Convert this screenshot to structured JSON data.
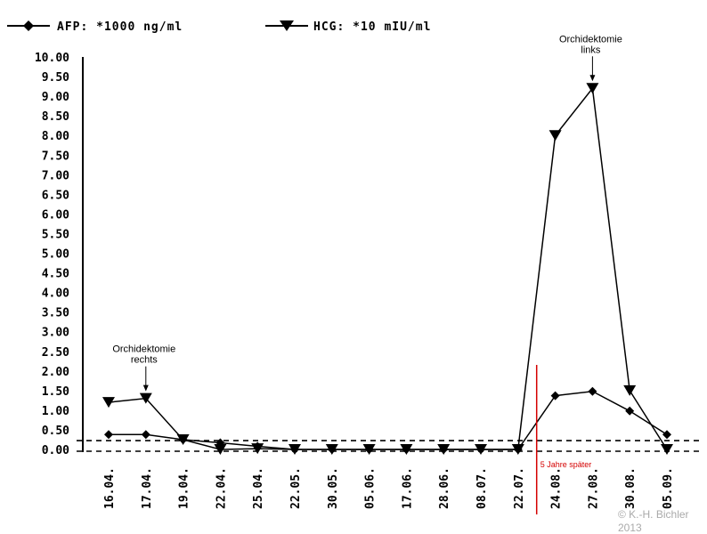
{
  "chart_data": {
    "type": "line",
    "categories": [
      "16.04.",
      "17.04.",
      "19.04.",
      "22.04.",
      "25.04.",
      "22.05.",
      "30.05.",
      "05.06.",
      "17.06.",
      "28.06.",
      "08.07.",
      "22.07.",
      "24.08.",
      "27.08.",
      "30.08.",
      "05.09."
    ],
    "series": [
      {
        "name": "AFP: *1000 ng/ml",
        "marker": "diamond",
        "color": "#000000",
        "values": [
          0.38,
          0.38,
          0.25,
          0.17,
          0.08,
          0.0,
          0.0,
          0.0,
          0.0,
          0.0,
          0.0,
          0.0,
          1.37,
          1.48,
          0.98,
          0.38
        ]
      },
      {
        "name": "HCG: *10 mIU/ml",
        "marker": "triangle-down",
        "color": "#000000",
        "values": [
          1.2,
          1.3,
          0.25,
          0.0,
          0.02,
          0.0,
          0.0,
          0.0,
          0.0,
          0.0,
          0.0,
          0.0,
          8.0,
          9.2,
          1.5,
          0.0
        ]
      }
    ],
    "yticks": [
      "0.00",
      "0.50",
      "1.00",
      "1.50",
      "2.00",
      "2.50",
      "3.00",
      "3.50",
      "4.00",
      "4.50",
      "5.00",
      "5.50",
      "6.00",
      "6.50",
      "7.00",
      "7.50",
      "8.00",
      "8.50",
      "9.00",
      "9.50",
      "10.00"
    ],
    "ylim": [
      0,
      10
    ],
    "reference_lines": [
      0.0,
      0.27
    ],
    "marker_line": {
      "after_category": "22.07.",
      "label": "5 Jahre später",
      "color": "#d40000"
    },
    "annotations": [
      {
        "text_line1": "Orchidektomie",
        "text_line2": "rechts",
        "category": "17.04.",
        "series": 1
      },
      {
        "text_line1": "Orchidektomie",
        "text_line2": "links",
        "category": "27.08.",
        "series": 1
      }
    ],
    "grid": false,
    "legend_position": "top-left"
  },
  "copyright": {
    "line1": "© K.-H. Bichler",
    "line2": "2013"
  }
}
